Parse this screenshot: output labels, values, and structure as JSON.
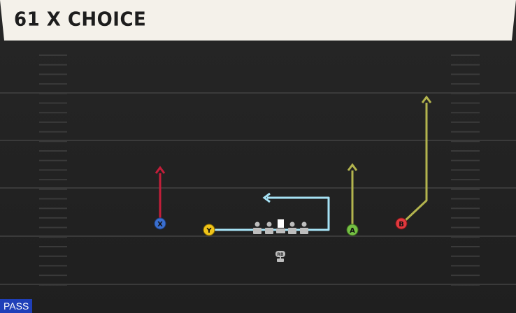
{
  "play": {
    "title": "61 X CHOICE",
    "play_type": "PASS"
  },
  "players": [
    {
      "id": "x",
      "label": "X",
      "color": "#3a6fd0",
      "route_color": "#c41e3a",
      "route": "go"
    },
    {
      "id": "y",
      "label": "Y",
      "color": "#f0c419",
      "route_color": "#a6e2f5",
      "route": "drag"
    },
    {
      "id": "a",
      "label": "A",
      "color": "#74c043",
      "route_color": "#b3b44e",
      "route": "go"
    },
    {
      "id": "b",
      "label": "B",
      "color": "#e0393e",
      "route_color": "#b3b44e",
      "route": "corner-go"
    }
  ],
  "backfield": {
    "label": "RB"
  }
}
